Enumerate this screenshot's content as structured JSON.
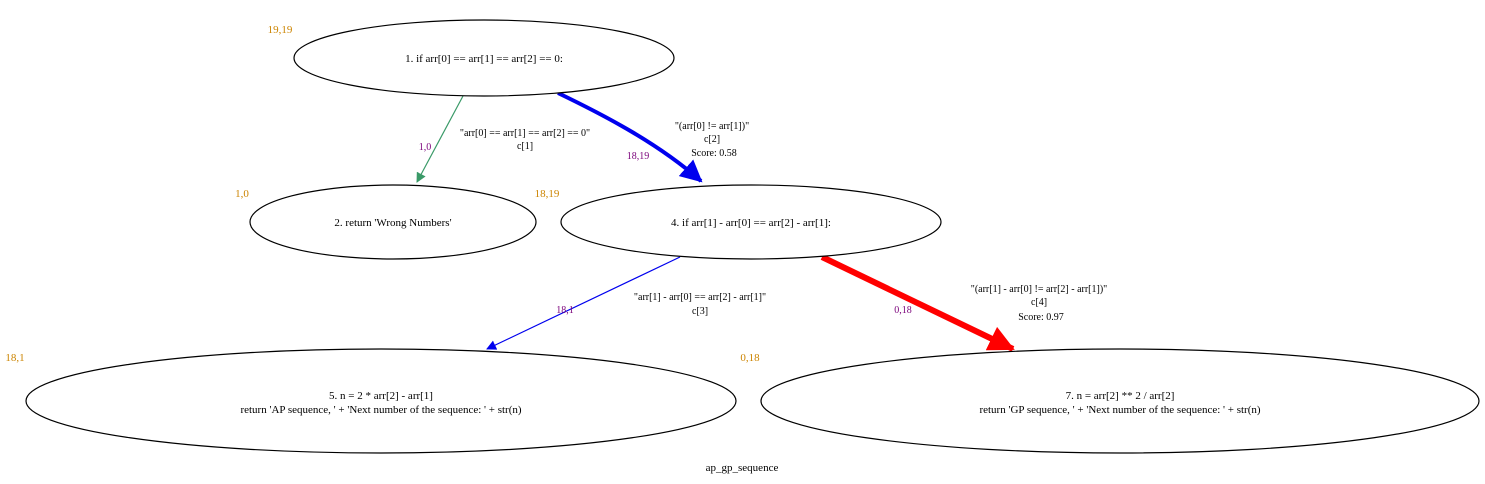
{
  "graph": {
    "caption": "ap_gp_sequence",
    "colors": {
      "node_outline": "#000000",
      "count_label": "#cc8400",
      "edge_count": "#7a007a",
      "edge_green": "#3a9a68",
      "edge_blue": "#0000ee",
      "edge_red": "#ff0000"
    },
    "nodes": [
      {
        "id": "n1",
        "lines": [
          "1. if arr[0] == arr[1] == arr[2] == 0:"
        ],
        "count": "19,19"
      },
      {
        "id": "n2",
        "lines": [
          "2. return 'Wrong Numbers'"
        ],
        "count": "1,0"
      },
      {
        "id": "n4",
        "lines": [
          "4. if arr[1] - arr[0] == arr[2] - arr[1]:"
        ],
        "count": "18,19"
      },
      {
        "id": "n5",
        "lines": [
          "5. n = 2 * arr[2] - arr[1]",
          "return 'AP sequence, ' + 'Next number of the sequence: ' + str(n)"
        ],
        "count": "18,1"
      },
      {
        "id": "n7",
        "lines": [
          "7. n = arr[2] ** 2 / arr[2]",
          "return 'GP sequence, ' + 'Next number of the sequence: ' + str(n)"
        ],
        "count": "0,18"
      }
    ],
    "edges": [
      {
        "id": "e1_2",
        "from": "n1",
        "to": "n2",
        "label_lines": [
          "\"arr[0] == arr[1] == arr[2] == 0\"",
          "c[1]"
        ],
        "count": "1,0"
      },
      {
        "id": "e1_4",
        "from": "n1",
        "to": "n4",
        "label_lines": [
          "\"(arr[0] != arr[1])\"",
          "c[2]",
          "Score: 0.58"
        ],
        "count": "18,19"
      },
      {
        "id": "e4_5",
        "from": "n4",
        "to": "n5",
        "label_lines": [
          "\"arr[1] - arr[0] == arr[2] - arr[1]\"",
          "c[3]"
        ],
        "count": "18,1"
      },
      {
        "id": "e4_7",
        "from": "n4",
        "to": "n7",
        "label_lines": [
          "\"(arr[1] - arr[0] != arr[2] - arr[1])\"",
          "c[4]",
          "Score: 0.97"
        ],
        "count": "0,18"
      }
    ]
  }
}
